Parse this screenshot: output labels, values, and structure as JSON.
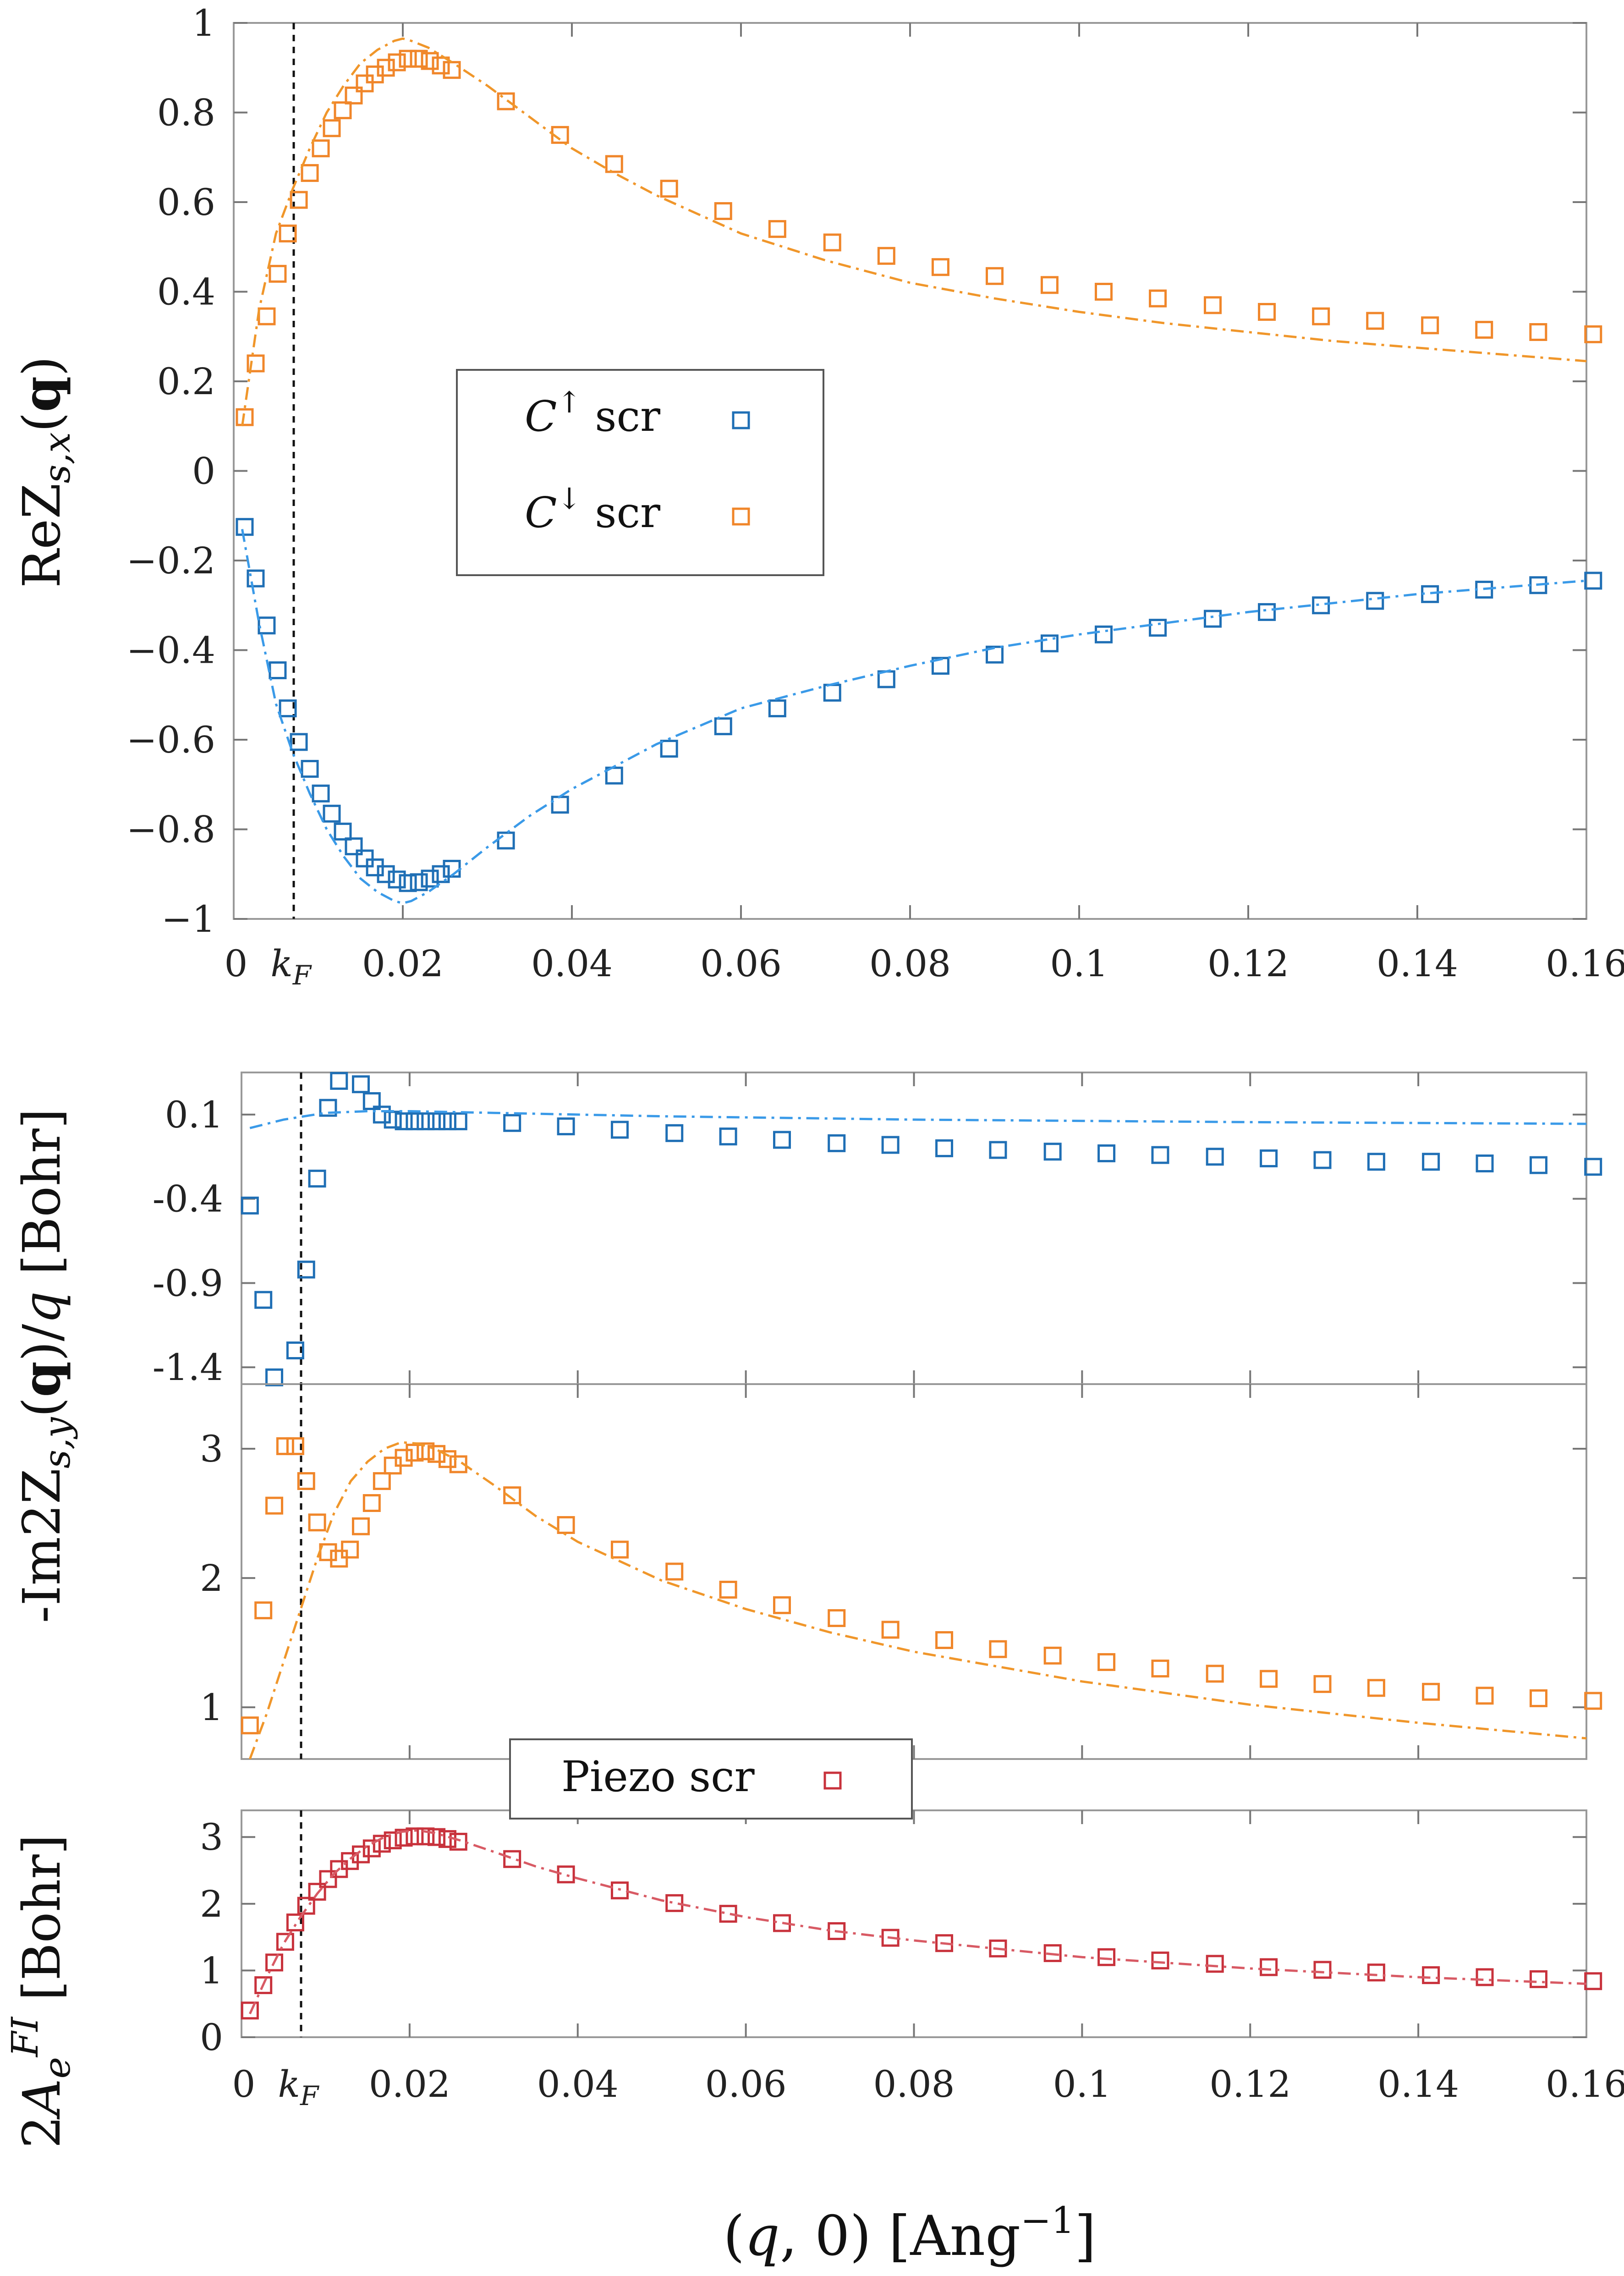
{
  "chart_data": [
    {
      "type": "scatter",
      "panel": "top",
      "ylabel": "ReZ_{s,x}(q)",
      "xlim": [
        0,
        0.16
      ],
      "ylim": [
        -1,
        1
      ],
      "xticks": [
        "0",
        "k_F",
        "0.02",
        "0.04",
        "0.06",
        "0.08",
        "0.1",
        "0.12",
        "0.14",
        "0.16"
      ],
      "yticks": [
        "1",
        "0.8",
        "0.6",
        "0.4",
        "0.2",
        "0",
        "−0.2",
        "−0.4",
        "−0.6",
        "−0.8",
        "−1"
      ],
      "kf": 0.0073,
      "legend": [
        {
          "label": "C↑ scr",
          "color": "#1f6fb5"
        },
        {
          "label": "C↓ scr",
          "color": "#f0862a"
        }
      ],
      "series": [
        {
          "name": "C↓ scr points",
          "color": "#f0862a",
          "x": [
            0.0013,
            0.0026,
            0.0039,
            0.0052,
            0.0064,
            0.0077,
            0.009,
            0.0103,
            0.0116,
            0.0129,
            0.0142,
            0.0155,
            0.0167,
            0.018,
            0.0193,
            0.0206,
            0.0219,
            0.0232,
            0.0245,
            0.0258,
            0.0322,
            0.0386,
            0.045,
            0.0515,
            0.0579,
            0.0643,
            0.0708,
            0.0772,
            0.0836,
            0.09,
            0.0965,
            0.1029,
            0.1093,
            0.1158,
            0.1222,
            0.1286,
            0.135,
            0.1415,
            0.1479,
            0.1543,
            0.1608
          ],
          "y": [
            0.12,
            0.24,
            0.345,
            0.44,
            0.53,
            0.605,
            0.665,
            0.72,
            0.765,
            0.805,
            0.838,
            0.865,
            0.885,
            0.9,
            0.912,
            0.92,
            0.92,
            0.915,
            0.905,
            0.895,
            0.825,
            0.75,
            0.685,
            0.63,
            0.58,
            0.54,
            0.51,
            0.48,
            0.455,
            0.435,
            0.415,
            0.4,
            0.385,
            0.37,
            0.355,
            0.345,
            0.335,
            0.325,
            0.315,
            0.31,
            0.305
          ]
        },
        {
          "name": "C↑ scr points",
          "color": "#1f6fb5",
          "x": [
            0.0013,
            0.0026,
            0.0039,
            0.0052,
            0.0064,
            0.0077,
            0.009,
            0.0103,
            0.0116,
            0.0129,
            0.0142,
            0.0155,
            0.0167,
            0.018,
            0.0193,
            0.0206,
            0.0219,
            0.0232,
            0.0245,
            0.0258,
            0.0322,
            0.0386,
            0.045,
            0.0515,
            0.0579,
            0.0643,
            0.0708,
            0.0772,
            0.0836,
            0.09,
            0.0965,
            0.1029,
            0.1093,
            0.1158,
            0.1222,
            0.1286,
            0.135,
            0.1415,
            0.1479,
            0.1543,
            0.1608
          ],
          "y": [
            -0.125,
            -0.24,
            -0.345,
            -0.445,
            -0.53,
            -0.605,
            -0.665,
            -0.72,
            -0.765,
            -0.805,
            -0.838,
            -0.865,
            -0.885,
            -0.9,
            -0.912,
            -0.92,
            -0.918,
            -0.91,
            -0.9,
            -0.888,
            -0.825,
            -0.745,
            -0.68,
            -0.62,
            -0.57,
            -0.53,
            -0.495,
            -0.465,
            -0.435,
            -0.41,
            -0.385,
            -0.365,
            -0.35,
            -0.33,
            -0.315,
            -0.3,
            -0.29,
            -0.275,
            -0.265,
            -0.255,
            -0.245
          ]
        },
        {
          "name": "C↓ curve",
          "color": "#f0962a",
          "style": "dashdot",
          "x": [
            0.001,
            0.003,
            0.005,
            0.007,
            0.009,
            0.011,
            0.013,
            0.015,
            0.017,
            0.019,
            0.02,
            0.021,
            0.023,
            0.026,
            0.03,
            0.035,
            0.04,
            0.045,
            0.05,
            0.06,
            0.07,
            0.08,
            0.09,
            0.1,
            0.11,
            0.12,
            0.13,
            0.14,
            0.15,
            0.16
          ],
          "y": [
            0.1,
            0.36,
            0.53,
            0.63,
            0.72,
            0.8,
            0.86,
            0.91,
            0.94,
            0.96,
            0.965,
            0.96,
            0.945,
            0.91,
            0.86,
            0.79,
            0.72,
            0.665,
            0.615,
            0.53,
            0.47,
            0.42,
            0.385,
            0.355,
            0.33,
            0.31,
            0.29,
            0.275,
            0.26,
            0.245
          ]
        },
        {
          "name": "C↑ curve",
          "color": "#3a9ae8",
          "style": "dashdot",
          "x": [
            0.001,
            0.003,
            0.005,
            0.007,
            0.009,
            0.011,
            0.013,
            0.015,
            0.017,
            0.019,
            0.02,
            0.021,
            0.023,
            0.026,
            0.03,
            0.035,
            0.04,
            0.045,
            0.05,
            0.06,
            0.07,
            0.08,
            0.09,
            0.1,
            0.11,
            0.12,
            0.13,
            0.14,
            0.15,
            0.16
          ],
          "y": [
            -0.13,
            -0.34,
            -0.52,
            -0.63,
            -0.72,
            -0.8,
            -0.86,
            -0.91,
            -0.94,
            -0.96,
            -0.965,
            -0.96,
            -0.94,
            -0.9,
            -0.84,
            -0.77,
            -0.71,
            -0.66,
            -0.61,
            -0.53,
            -0.48,
            -0.435,
            -0.395,
            -0.365,
            -0.34,
            -0.315,
            -0.295,
            -0.275,
            -0.26,
            -0.245
          ]
        }
      ]
    },
    {
      "type": "scatter",
      "panel": "middle-upper",
      "xlim": [
        0,
        0.16
      ],
      "ylim": [
        -1.5,
        0.35
      ],
      "yticks": [
        "0.1",
        "-0.4",
        "-0.9",
        "-1.4"
      ],
      "series": [
        {
          "name": "C↑ scr points",
          "color": "#1f6fb5",
          "x": [
            0.001,
            0.0026,
            0.0039,
            0.0064,
            0.0077,
            0.009,
            0.0103,
            0.0116,
            0.0142,
            0.0155,
            0.0167,
            0.018,
            0.0193,
            0.0206,
            0.0219,
            0.0232,
            0.0245,
            0.0258,
            0.0322,
            0.0386,
            0.045,
            0.0515,
            0.0579,
            0.0643,
            0.0708,
            0.0772,
            0.0836,
            0.09,
            0.0965,
            0.1029,
            0.1093,
            0.1158,
            0.1222,
            0.1286,
            0.135,
            0.1415,
            0.1479,
            0.1543,
            0.1608
          ],
          "y": [
            -0.44,
            -1.0,
            -1.46,
            -1.3,
            -0.82,
            -0.28,
            0.14,
            0.3,
            0.28,
            0.18,
            0.1,
            0.07,
            0.06,
            0.06,
            0.06,
            0.06,
            0.06,
            0.06,
            0.05,
            0.03,
            0.01,
            -0.01,
            -0.03,
            -0.05,
            -0.07,
            -0.08,
            -0.1,
            -0.11,
            -0.12,
            -0.13,
            -0.14,
            -0.15,
            -0.16,
            -0.17,
            -0.18,
            -0.18,
            -0.19,
            -0.2,
            -0.21
          ]
        },
        {
          "name": "C↑ curve",
          "color": "#3a9ae8",
          "style": "dashdot",
          "x": [
            0.001,
            0.005,
            0.01,
            0.015,
            0.02,
            0.03,
            0.05,
            0.08,
            0.12,
            0.16
          ],
          "y": [
            0.02,
            0.07,
            0.11,
            0.12,
            0.12,
            0.11,
            0.09,
            0.07,
            0.055,
            0.045
          ]
        }
      ]
    },
    {
      "type": "scatter",
      "panel": "middle-lower",
      "ylabel": "-Im2Z_{s,y}(q)/q [Bohr]",
      "xlim": [
        0,
        0.16
      ],
      "ylim": [
        0.6,
        3.5
      ],
      "yticks": [
        "3",
        "2",
        "1"
      ],
      "series": [
        {
          "name": "C↓ scr points",
          "color": "#f0862a",
          "x": [
            0.001,
            0.0026,
            0.0039,
            0.0052,
            0.0064,
            0.0077,
            0.009,
            0.0103,
            0.0116,
            0.0129,
            0.0142,
            0.0155,
            0.0167,
            0.018,
            0.0193,
            0.0206,
            0.0219,
            0.0232,
            0.0245,
            0.0258,
            0.0322,
            0.0386,
            0.045,
            0.0515,
            0.0579,
            0.0643,
            0.0708,
            0.0772,
            0.0836,
            0.09,
            0.0965,
            0.1029,
            0.1093,
            0.1158,
            0.1222,
            0.1286,
            0.135,
            0.1415,
            0.1479,
            0.1543,
            0.1608
          ],
          "y": [
            0.86,
            1.75,
            2.56,
            3.02,
            3.02,
            2.75,
            2.43,
            2.2,
            2.15,
            2.22,
            2.4,
            2.58,
            2.75,
            2.87,
            2.93,
            2.97,
            2.98,
            2.96,
            2.92,
            2.88,
            2.64,
            2.41,
            2.22,
            2.05,
            1.91,
            1.79,
            1.69,
            1.6,
            1.52,
            1.45,
            1.4,
            1.35,
            1.3,
            1.26,
            1.22,
            1.18,
            1.15,
            1.12,
            1.09,
            1.07,
            1.05
          ]
        },
        {
          "name": "C↓ curve",
          "color": "#f0962a",
          "style": "dashdot",
          "x": [
            0.001,
            0.003,
            0.005,
            0.007,
            0.009,
            0.011,
            0.013,
            0.015,
            0.017,
            0.019,
            0.021,
            0.023,
            0.026,
            0.03,
            0.035,
            0.04,
            0.05,
            0.06,
            0.07,
            0.08,
            0.1,
            0.12,
            0.14,
            0.16
          ],
          "y": [
            0.6,
            0.95,
            1.35,
            1.75,
            2.15,
            2.5,
            2.75,
            2.9,
            3.0,
            3.05,
            3.04,
            3.0,
            2.9,
            2.72,
            2.48,
            2.28,
            1.98,
            1.76,
            1.58,
            1.43,
            1.2,
            1.02,
            0.88,
            0.76
          ]
        }
      ]
    },
    {
      "type": "scatter",
      "panel": "bottom",
      "ylabel": "2A_e^{FI} [Bohr]",
      "xlabel": "(q, 0) [Ang⁻¹]",
      "xlim": [
        0,
        0.16
      ],
      "ylim": [
        0,
        3.4
      ],
      "xticks": [
        "0",
        "k_F",
        "0.02",
        "0.04",
        "0.06",
        "0.08",
        "0.1",
        "0.12",
        "0.14",
        "0.16"
      ],
      "yticks": [
        "3",
        "2",
        "1",
        "0"
      ],
      "legend": [
        {
          "label": "Piezo scr",
          "color": "#c8323c"
        }
      ],
      "series": [
        {
          "name": "Piezo scr points",
          "color": "#c8323c",
          "x": [
            0.001,
            0.0026,
            0.0039,
            0.0052,
            0.0064,
            0.0077,
            0.009,
            0.0103,
            0.0116,
            0.0129,
            0.0142,
            0.0155,
            0.0167,
            0.018,
            0.0193,
            0.0206,
            0.0219,
            0.0232,
            0.0245,
            0.0258,
            0.0322,
            0.0386,
            0.045,
            0.0515,
            0.0579,
            0.0643,
            0.0708,
            0.0772,
            0.0836,
            0.09,
            0.0965,
            0.1029,
            0.1093,
            0.1158,
            0.1222,
            0.1286,
            0.135,
            0.1415,
            0.1479,
            0.1543,
            0.1608
          ],
          "y": [
            0.4,
            0.78,
            1.12,
            1.43,
            1.72,
            1.97,
            2.18,
            2.37,
            2.52,
            2.64,
            2.74,
            2.83,
            2.9,
            2.95,
            2.99,
            3.01,
            3.01,
            3.0,
            2.97,
            2.93,
            2.67,
            2.44,
            2.2,
            2.01,
            1.85,
            1.71,
            1.59,
            1.49,
            1.41,
            1.33,
            1.26,
            1.2,
            1.15,
            1.1,
            1.05,
            1.01,
            0.97,
            0.93,
            0.9,
            0.87,
            0.84
          ]
        },
        {
          "name": "Piezo curve",
          "color": "#d85a64",
          "style": "dashdot",
          "x": [
            0.001,
            0.003,
            0.005,
            0.007,
            0.009,
            0.011,
            0.013,
            0.015,
            0.017,
            0.019,
            0.021,
            0.023,
            0.026,
            0.03,
            0.035,
            0.04,
            0.05,
            0.06,
            0.07,
            0.08,
            0.1,
            0.12,
            0.14,
            0.16
          ],
          "y": [
            0.35,
            0.9,
            1.4,
            1.8,
            2.15,
            2.45,
            2.68,
            2.87,
            3.0,
            3.08,
            3.1,
            3.06,
            2.95,
            2.78,
            2.56,
            2.38,
            2.05,
            1.8,
            1.6,
            1.45,
            1.2,
            1.03,
            0.9,
            0.8
          ]
        }
      ]
    }
  ]
}
